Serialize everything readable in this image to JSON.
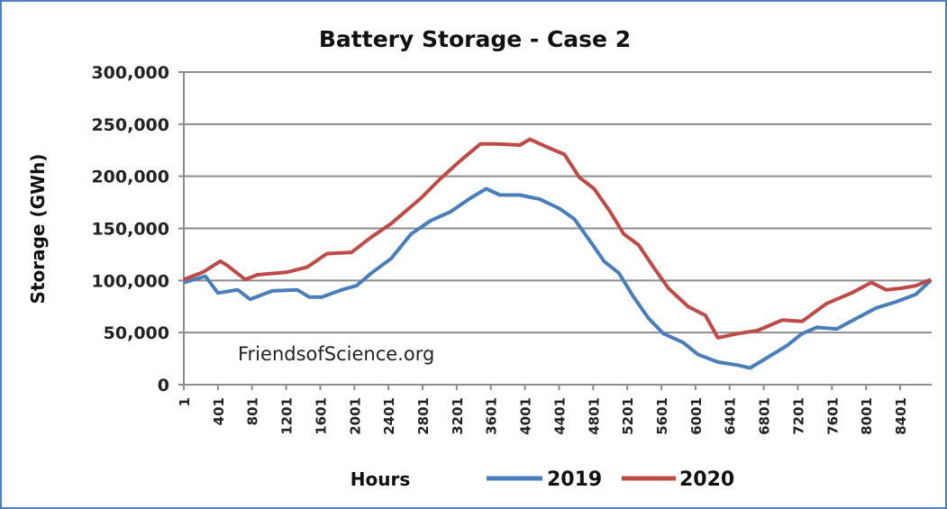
{
  "chart_data": {
    "type": "line",
    "title": "Battery Storage - Case 2",
    "xlabel": "Hours",
    "ylabel": "Storage (GWh)",
    "ylim": [
      0,
      300000
    ],
    "xlim": [
      1,
      8760
    ],
    "yticks": [
      0,
      50000,
      100000,
      150000,
      200000,
      250000,
      300000
    ],
    "ytick_labels": [
      "0",
      "50,000",
      "100,000",
      "150,000",
      "200,000",
      "250,000",
      "300,000"
    ],
    "xticks": [
      1,
      401,
      801,
      1201,
      1601,
      2001,
      2401,
      2801,
      3201,
      3601,
      4001,
      4401,
      4801,
      5201,
      5601,
      6001,
      6401,
      6801,
      7201,
      7601,
      8001,
      8401
    ],
    "xtick_labels": [
      "1",
      "401",
      "801",
      "1201",
      "1601",
      "2001",
      "2401",
      "2801",
      "3201",
      "3601",
      "4001",
      "4401",
      "4801",
      "5201",
      "5601",
      "6001",
      "6401",
      "6801",
      "7201",
      "7601",
      "8001",
      "8401"
    ],
    "grid": true,
    "legend_position": "bottom",
    "annotation": "FriendsofScience.org",
    "series": [
      {
        "name": "2019",
        "color": "#4a7ebb",
        "x": [
          1,
          255,
          400,
          633,
          778,
          1039,
          1329,
          1474,
          1620,
          1852,
          2026,
          2200,
          2432,
          2665,
          2897,
          3129,
          3361,
          3547,
          3709,
          3942,
          4174,
          4406,
          4580,
          4754,
          4928,
          5103,
          5277,
          5451,
          5625,
          5857,
          6031,
          6263,
          6496,
          6641,
          6844,
          7076,
          7251,
          7425,
          7657,
          7889,
          8121,
          8353,
          8586,
          8760
        ],
        "values": [
          98000,
          104000,
          88000,
          91000,
          82000,
          90000,
          91000,
          84000,
          84000,
          91000,
          95000,
          107000,
          121000,
          144500,
          157500,
          166000,
          179000,
          188000,
          182000,
          182000,
          178000,
          169000,
          159000,
          139000,
          118500,
          107000,
          84000,
          63600,
          49000,
          40500,
          29000,
          21700,
          18800,
          16000,
          26000,
          37600,
          49000,
          55000,
          53500,
          63600,
          73700,
          79500,
          86700,
          100000
        ]
      },
      {
        "name": "2020",
        "color": "#be4b48",
        "x": [
          1,
          226,
          430,
          517,
          720,
          865,
          1213,
          1446,
          1678,
          1968,
          2200,
          2432,
          2781,
          3013,
          3245,
          3478,
          3652,
          3942,
          4058,
          4290,
          4464,
          4638,
          4812,
          4987,
          5161,
          5335,
          5509,
          5683,
          5915,
          6118,
          6263,
          6496,
          6728,
          7018,
          7251,
          7541,
          7831,
          8063,
          8237,
          8411,
          8586,
          8760
        ],
        "values": [
          101000,
          108000,
          118500,
          114000,
          101000,
          105500,
          108000,
          112700,
          125700,
          127000,
          141600,
          154600,
          179000,
          198000,
          215000,
          231000,
          231000,
          230000,
          235500,
          227000,
          221000,
          199000,
          188000,
          167600,
          144500,
          134000,
          112700,
          92500,
          75000,
          66500,
          45000,
          49000,
          52000,
          62000,
          60700,
          78000,
          88000,
          98000,
          91000,
          92500,
          95000,
          101000
        ]
      }
    ]
  }
}
